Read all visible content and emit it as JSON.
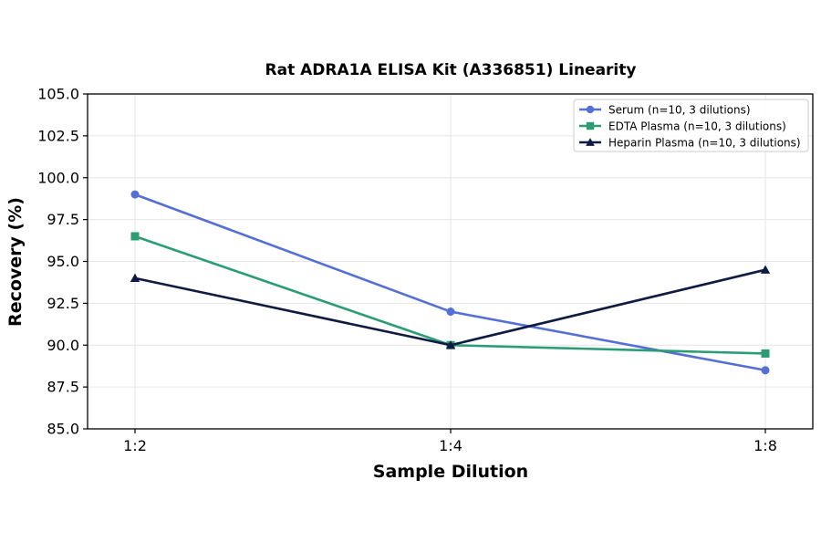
{
  "chart_data": {
    "type": "line",
    "title": "Rat ADRA1A ELISA Kit (A336851) Linearity",
    "xlabel": "Sample Dilution",
    "ylabel": "Recovery (%)",
    "categories": [
      "1:2",
      "1:4",
      "1:8"
    ],
    "ylim": [
      85.0,
      105.0
    ],
    "yticks": [
      "85.0",
      "87.5",
      "90.0",
      "92.5",
      "95.0",
      "97.5",
      "100.0",
      "102.5",
      "105.0"
    ],
    "grid": true,
    "legend_position": "top-right",
    "series": [
      {
        "name": "Serum (n=10, 3 dilutions)",
        "values": [
          99.0,
          92.0,
          88.5
        ],
        "color": "#5470d6",
        "marker": "circle"
      },
      {
        "name": "EDTA Plasma (n=10, 3 dilutions)",
        "values": [
          96.5,
          90.0,
          89.5
        ],
        "color": "#2a9d74",
        "marker": "square"
      },
      {
        "name": "Heparin Plasma (n=10, 3 dilutions)",
        "values": [
          94.0,
          90.0,
          94.5
        ],
        "color": "#0f1b42",
        "marker": "triangle"
      }
    ]
  }
}
